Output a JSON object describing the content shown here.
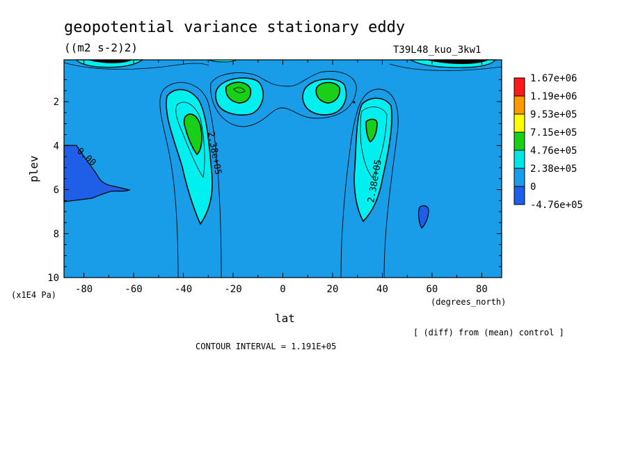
{
  "chart_data": {
    "type": "contour",
    "title": "geopotential variance stationary eddy",
    "units": "((m2 s-2)2)",
    "run_label": "T39L48_kuo_3kw1",
    "xlabel": "lat",
    "xunits": "(degrees_north)",
    "ylabel": "plev",
    "yunits": "(x1E4 Pa)",
    "xlim": [
      -88,
      88
    ],
    "ylim": [
      10,
      0.1
    ],
    "xticks": [
      -80,
      -60,
      -40,
      -20,
      0,
      20,
      40,
      60,
      80
    ],
    "yticks": [
      2,
      4,
      6,
      8,
      10
    ],
    "contour_interval_text": "CONTOUR INTERVAL = 1.191E+05",
    "footnote": "[ (diff) from (mean) control ]",
    "contour_labels": [
      "0.00",
      "2.38e+05",
      "2.38e+05"
    ],
    "colorbar": {
      "labels": [
        "1.67e+06",
        "1.19e+06",
        "9.53e+05",
        "7.15e+05",
        "4.76e+05",
        "2.38e+05",
        "0",
        "-4.76e+05"
      ],
      "colors": [
        "#ff1a1a",
        "#ff9900",
        "#ffff00",
        "#19d019",
        "#00e6e6",
        "#1a9de8",
        "#1f5fe8"
      ]
    },
    "fill_colors": {
      "background": "#1a9de8",
      "cyan": "#00f0f0",
      "green": "#19d019",
      "negative": "#1f5fe8",
      "black": "#000000"
    }
  }
}
